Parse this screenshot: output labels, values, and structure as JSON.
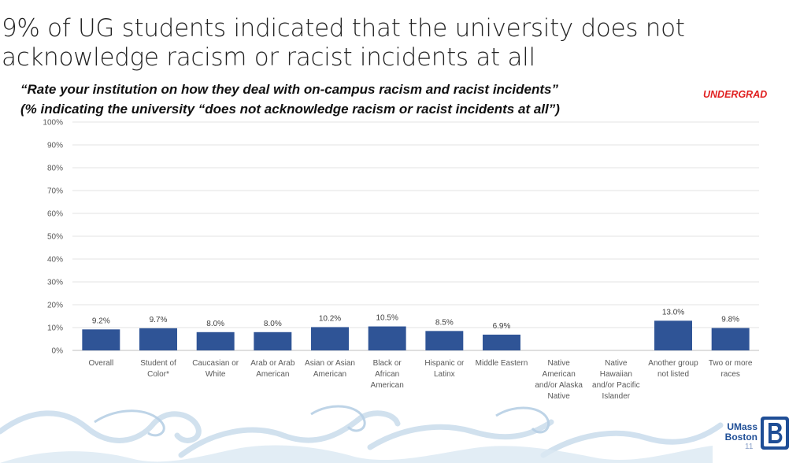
{
  "slide": {
    "title": "9% of UG students indicated that the university does not acknowledge racism or racist incidents at all",
    "subtitle_line1": "“Rate your institution on how they deal with on-campus racism and racist incidents”",
    "subtitle_line2": "(% indicating the university “does not acknowledge racism or racist incidents at all”)",
    "tag": "UNDERGRAD",
    "tag_color": "#e02020",
    "page_number": "11"
  },
  "logo": {
    "line1": "UMass",
    "line2": "Boston",
    "icon": "umass-boston-b-logo-icon",
    "color": "#1f4e96"
  },
  "chart_data": {
    "type": "bar",
    "categories": [
      [
        "Overall"
      ],
      [
        "Student of",
        "Color*"
      ],
      [
        "Caucasian or",
        "White"
      ],
      [
        "Arab or Arab",
        "American"
      ],
      [
        "Asian or Asian",
        "American"
      ],
      [
        "Black or",
        "African",
        "American"
      ],
      [
        "Hispanic or",
        "Latinx"
      ],
      [
        "Middle Eastern"
      ],
      [
        "Native",
        "American",
        "and/or Alaska",
        "Native"
      ],
      [
        "Native",
        "Hawaiian",
        "and/or Pacific",
        "Islander"
      ],
      [
        "Another group",
        "not listed"
      ],
      [
        "Two or more",
        "races"
      ]
    ],
    "values": [
      9.2,
      9.7,
      8.0,
      8.0,
      10.2,
      10.5,
      8.5,
      6.9,
      null,
      null,
      13.0,
      9.8
    ],
    "value_labels": [
      "9.2%",
      "9.7%",
      "8.0%",
      "8.0%",
      "10.2%",
      "10.5%",
      "8.5%",
      "6.9%",
      "",
      "",
      "13.0%",
      "9.8%"
    ],
    "ylim": [
      0,
      100
    ],
    "yticks": [
      "0%",
      "10%",
      "20%",
      "30%",
      "40%",
      "50%",
      "60%",
      "70%",
      "80%",
      "90%",
      "100%"
    ],
    "bar_color": "#2f5496",
    "grid": true,
    "xlabel": "",
    "ylabel": ""
  }
}
